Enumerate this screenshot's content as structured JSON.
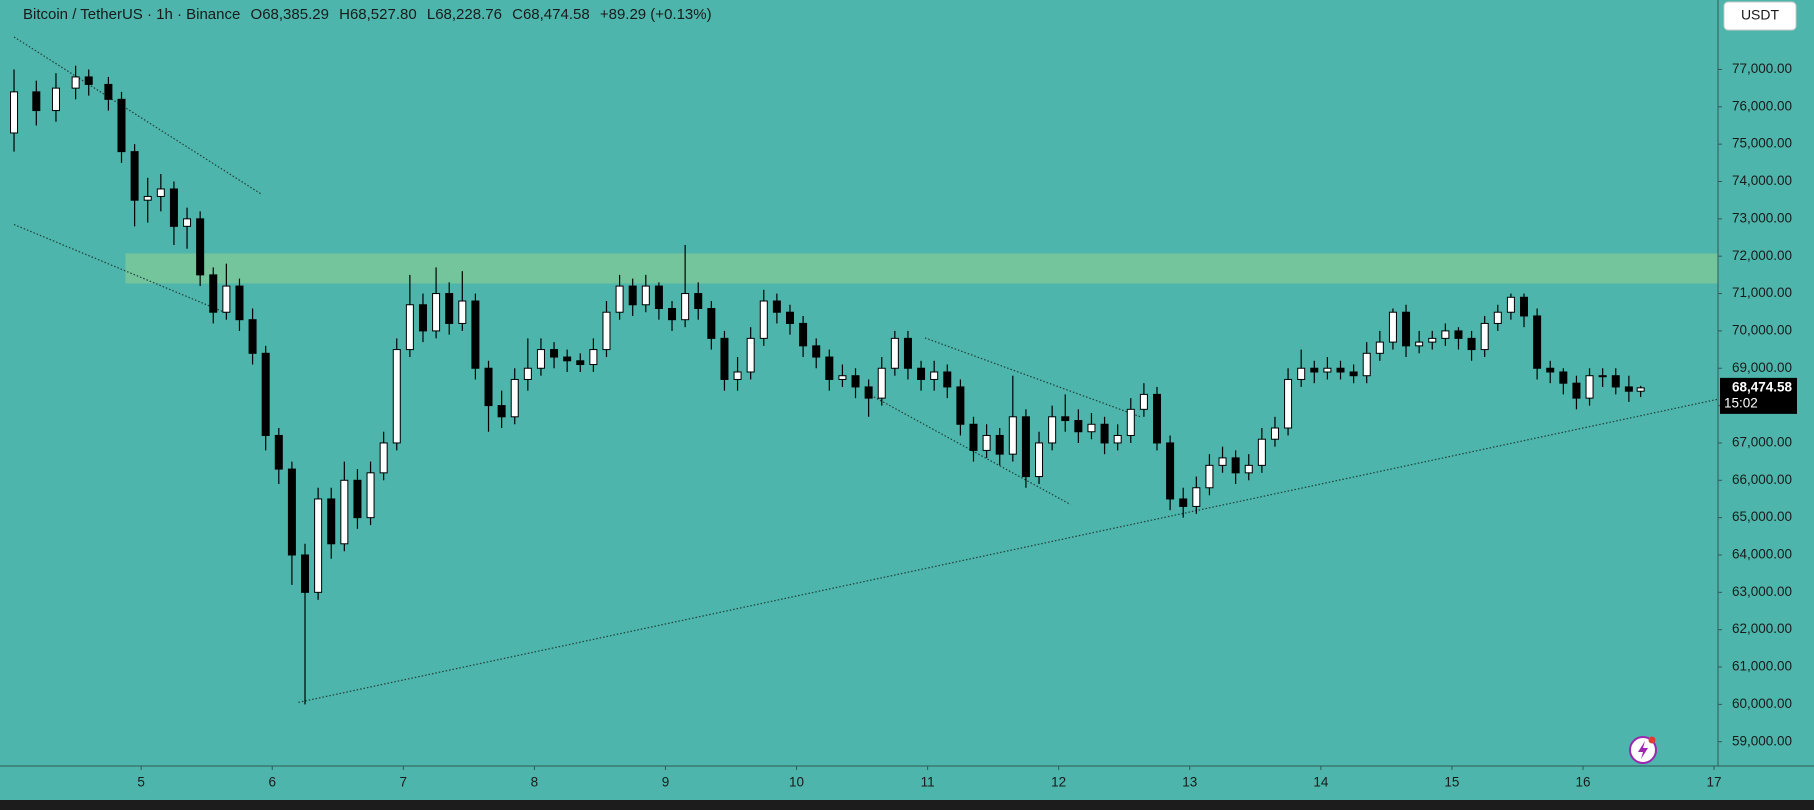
{
  "header": {
    "symbol": "Bitcoin / TetherUS · 1h · Binance",
    "ohlc": [
      {
        "key": "O",
        "value": "68,385.29"
      },
      {
        "key": "H",
        "value": "68,527.80"
      },
      {
        "key": "L",
        "value": "68,228.76"
      },
      {
        "key": "C",
        "value": "68,474.58"
      }
    ],
    "change": "+89.29 (+0.13%)"
  },
  "chart_data": {
    "type": "candlestick",
    "currency": "USDT",
    "x": [
      4.03,
      4.2,
      4.35,
      4.5,
      4.6,
      4.75,
      4.85,
      4.95,
      5.05,
      5.15,
      5.25,
      5.35,
      5.45,
      5.55,
      5.65,
      5.75,
      5.85,
      5.95,
      6.05,
      6.15,
      6.25,
      6.35,
      6.45,
      6.55,
      6.65,
      6.75,
      6.85,
      6.95,
      7.05,
      7.15,
      7.25,
      7.35,
      7.45,
      7.55,
      7.65,
      7.75,
      7.85,
      7.95,
      8.05,
      8.15,
      8.25,
      8.35,
      8.45,
      8.55,
      8.65,
      8.75,
      8.85,
      8.95,
      9.05,
      9.15,
      9.25,
      9.35,
      9.45,
      9.55,
      9.65,
      9.75,
      9.85,
      9.95,
      10.05,
      10.15,
      10.25,
      10.35,
      10.45,
      10.55,
      10.65,
      10.75,
      10.85,
      10.95,
      11.05,
      11.15,
      11.25,
      11.35,
      11.45,
      11.55,
      11.65,
      11.75,
      11.85,
      11.95,
      12.05,
      12.15,
      12.25,
      12.35,
      12.45,
      12.55,
      12.65,
      12.75,
      12.85,
      12.95,
      13.05,
      13.15,
      13.25,
      13.35,
      13.45,
      13.55,
      13.65,
      13.75,
      13.85,
      13.95,
      14.05,
      14.15,
      14.25,
      14.35,
      14.45,
      14.55,
      14.65,
      14.75,
      14.85,
      14.95,
      15.05,
      15.15,
      15.25,
      15.35,
      15.45,
      15.55,
      15.65,
      15.75,
      15.85,
      15.95,
      16.05,
      16.15,
      16.25,
      16.35,
      16.44
    ],
    "open": [
      75300,
      76400,
      75900,
      76500,
      76800,
      76600,
      76200,
      74800,
      73500,
      73600,
      73800,
      72800,
      73000,
      71500,
      70500,
      71200,
      70300,
      69400,
      67200,
      66300,
      64000,
      63000,
      65500,
      64300,
      66000,
      65000,
      66200,
      67000,
      69500,
      70700,
      70000,
      71000,
      70200,
      70800,
      69000,
      68000,
      67700,
      68700,
      69000,
      69500,
      69300,
      69200,
      69100,
      69500,
      70500,
      71200,
      70700,
      71200,
      70600,
      70300,
      71000,
      70600,
      69800,
      68700,
      68900,
      69800,
      70800,
      70500,
      70200,
      69600,
      69300,
      68700,
      68800,
      68500,
      68200,
      69000,
      69800,
      69000,
      68700,
      68900,
      68500,
      67500,
      66800,
      67200,
      66700,
      67700,
      66100,
      67000,
      67700,
      67600,
      67300,
      67500,
      67000,
      67200,
      67900,
      68300,
      67000,
      65500,
      65300,
      65800,
      66400,
      66600,
      66200,
      66400,
      67100,
      67400,
      68700,
      69000,
      68900,
      69000,
      68900,
      68800,
      69400,
      69700,
      70500,
      69600,
      69700,
      69800,
      70000,
      69800,
      69500,
      70200,
      70500,
      70900,
      70400,
      69000,
      68900,
      68600,
      68200,
      68800,
      68800,
      68500,
      68385.29
    ],
    "high": [
      77000,
      76700,
      76900,
      77100,
      77000,
      76800,
      76400,
      75000,
      74100,
      74200,
      74000,
      73300,
      73200,
      71700,
      71800,
      71400,
      70600,
      69600,
      67400,
      66500,
      64300,
      65800,
      65800,
      66500,
      66300,
      66500,
      67300,
      69800,
      71500,
      71000,
      71700,
      71300,
      71600,
      71000,
      69200,
      68400,
      69000,
      69800,
      69800,
      69700,
      69500,
      69400,
      69800,
      70800,
      71500,
      71400,
      71500,
      71300,
      70800,
      72300,
      71300,
      70800,
      70000,
      69300,
      70100,
      71100,
      71000,
      70700,
      70400,
      69800,
      69500,
      69100,
      69000,
      68700,
      69300,
      70000,
      70000,
      69200,
      69200,
      69100,
      68700,
      67700,
      67500,
      67400,
      68800,
      67900,
      67300,
      68000,
      68300,
      67900,
      67800,
      67700,
      67500,
      68200,
      68600,
      68500,
      67200,
      65800,
      66100,
      66700,
      66900,
      66800,
      66700,
      67400,
      67700,
      69000,
      69500,
      69200,
      69300,
      69200,
      69100,
      69700,
      70000,
      70600,
      70700,
      70000,
      70000,
      70200,
      70100,
      70000,
      70400,
      70700,
      71000,
      71000,
      70600,
      69200,
      69000,
      68800,
      69000,
      69000,
      69000,
      68800,
      68527.8
    ],
    "low": [
      74800,
      75500,
      75600,
      76200,
      76300,
      75900,
      74500,
      72800,
      72900,
      73200,
      72300,
      72200,
      71200,
      70200,
      70300,
      70000,
      69100,
      66800,
      65900,
      63200,
      60000,
      62800,
      63900,
      64100,
      64700,
      64800,
      66000,
      66800,
      69300,
      69700,
      69800,
      69900,
      70000,
      68700,
      67300,
      67400,
      67500,
      68400,
      68800,
      69000,
      68900,
      68900,
      68900,
      69300,
      70300,
      70400,
      70500,
      70300,
      70000,
      70100,
      70300,
      69500,
      68400,
      68400,
      68700,
      69600,
      70200,
      69900,
      69300,
      69000,
      68400,
      68500,
      68200,
      67700,
      68000,
      68800,
      68700,
      68400,
      68400,
      68200,
      67200,
      66500,
      66600,
      66400,
      66500,
      65800,
      65900,
      66800,
      67300,
      67000,
      67100,
      66700,
      66800,
      67000,
      67700,
      66800,
      65200,
      65000,
      65100,
      65600,
      66200,
      65900,
      66000,
      66200,
      66900,
      67200,
      68500,
      68600,
      68700,
      68700,
      68600,
      68600,
      69200,
      69500,
      69300,
      69400,
      69500,
      69600,
      69500,
      69200,
      69300,
      70000,
      70300,
      70100,
      68700,
      68600,
      68300,
      67900,
      68000,
      68500,
      68300,
      68100,
      68228.76
    ],
    "close": [
      76400,
      75900,
      76500,
      76800,
      76600,
      76200,
      74800,
      73500,
      73600,
      73800,
      72800,
      73000,
      71500,
      70500,
      71200,
      70300,
      69400,
      67200,
      66300,
      64000,
      63000,
      65500,
      64300,
      66000,
      65000,
      66200,
      67000,
      69500,
      70700,
      70000,
      71000,
      70200,
      70800,
      69000,
      68000,
      67700,
      68700,
      69000,
      69500,
      69300,
      69200,
      69100,
      69500,
      70500,
      71200,
      70700,
      71200,
      70600,
      70300,
      71000,
      70600,
      69800,
      68700,
      68900,
      69800,
      70800,
      70500,
      70200,
      69600,
      69300,
      68700,
      68800,
      68500,
      68200,
      69000,
      69800,
      69000,
      68700,
      68900,
      68500,
      67500,
      66800,
      67200,
      66700,
      67700,
      66100,
      67000,
      67700,
      67600,
      67300,
      67500,
      67000,
      67200,
      67900,
      68300,
      67000,
      65500,
      65300,
      65800,
      66400,
      66600,
      66200,
      66400,
      67100,
      67400,
      68700,
      69000,
      68900,
      69000,
      68900,
      68800,
      69400,
      69700,
      70500,
      69600,
      69700,
      69800,
      70000,
      69800,
      69500,
      70200,
      70500,
      70900,
      70400,
      69000,
      68900,
      68600,
      68200,
      68800,
      68800,
      68500,
      68385.29,
      68474.58
    ],
    "up_color": "#ffffff",
    "down_color": "#000000",
    "background": "#4db5ab",
    "xlim": [
      3.923,
      17.03
    ],
    "xticks": [
      5,
      6,
      7,
      8,
      9,
      10,
      11,
      12,
      13,
      14,
      15,
      16,
      17
    ],
    "ylim": [
      58350,
      78860
    ],
    "yticks": [
      {
        "value": 59000,
        "label": "59,000.00"
      },
      {
        "value": 60000,
        "label": "60,000.00"
      },
      {
        "value": 61000,
        "label": "61,000.00"
      },
      {
        "value": 62000,
        "label": "62,000.00"
      },
      {
        "value": 63000,
        "label": "63,000.00"
      },
      {
        "value": 64000,
        "label": "64,000.00"
      },
      {
        "value": 65000,
        "label": "65,000.00"
      },
      {
        "value": 66000,
        "label": "66,000.00"
      },
      {
        "value": 67000,
        "label": "67,000.00"
      },
      {
        "value": 68000,
        "label": "68,000.00"
      },
      {
        "value": 69000,
        "label": "69,000.00"
      },
      {
        "value": 70000,
        "label": "70,000.00"
      },
      {
        "value": 71000,
        "label": "71,000.00"
      },
      {
        "value": 72000,
        "label": "72,000.00"
      },
      {
        "value": 73000,
        "label": "73,000.00"
      },
      {
        "value": 74000,
        "label": "74,000.00"
      },
      {
        "value": 75000,
        "label": "75,000.00"
      },
      {
        "value": 76000,
        "label": "76,000.00"
      },
      {
        "value": 77000,
        "label": "77,000.00"
      }
    ],
    "zone": {
      "x": [
        4.88,
        17.03
      ],
      "y": [
        71269,
        72074
      ],
      "color": "#74c49c"
    },
    "trendlines": [
      {
        "x": [
          4.03,
          5.92
        ],
        "y": [
          77870,
          73655
        ]
      },
      {
        "x": [
          4.03,
          5.64
        ],
        "y": [
          72849,
          70494
        ]
      },
      {
        "x": [
          6.2,
          17.03
        ],
        "y": [
          60054,
          68171
        ]
      },
      {
        "x": [
          10.98,
          12.62
        ],
        "y": [
          69813,
          67706
        ]
      },
      {
        "x": [
          10.59,
          12.09
        ],
        "y": [
          68233,
          65352
        ]
      }
    ],
    "last_price": {
      "value": 68474.58,
      "label": "68,474.58"
    },
    "countdown": "15:02"
  }
}
